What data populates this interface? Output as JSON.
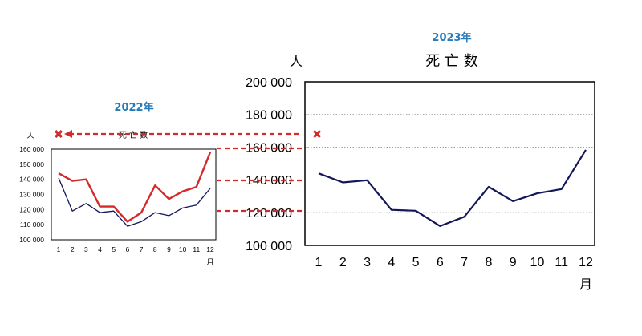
{
  "colors": {
    "red": "#d42a2a",
    "navy": "#14165a",
    "grid": "#7f7f7f",
    "year_title": "#2a7ab8"
  },
  "icons": {
    "cross_mark": "✖"
  },
  "chart_data": [
    {
      "id": "small",
      "type": "line",
      "year_title": "2022年",
      "title": "死 亡 数",
      "unit_y": "人",
      "unit_x": "月",
      "ylim": [
        100000,
        160000
      ],
      "yticks": [
        100000,
        110000,
        120000,
        130000,
        140000,
        150000,
        160000
      ],
      "ytick_labels": [
        "100 000",
        "110 000",
        "120 000",
        "130 000",
        "140 000",
        "150 000",
        "160 000"
      ],
      "categories": [
        "1",
        "2",
        "3",
        "4",
        "5",
        "6",
        "7",
        "8",
        "9",
        "10",
        "11",
        "12"
      ],
      "grid": false,
      "series": [
        {
          "color": "#14165a",
          "values": [
            141000,
            119000,
            124000,
            118000,
            119000,
            109000,
            112000,
            118000,
            116000,
            121000,
            123000,
            134000
          ]
        },
        {
          "color": "#d42a2a",
          "values": [
            144000,
            139000,
            140000,
            122000,
            122000,
            112000,
            118000,
            136000,
            127000,
            132000,
            135000,
            158000
          ]
        }
      ]
    },
    {
      "id": "large",
      "type": "line",
      "year_title": "2023年",
      "title": "死 亡 数",
      "unit_y": "人",
      "unit_x": "月",
      "ylim": [
        100000,
        200000
      ],
      "yticks": [
        100000,
        120000,
        140000,
        160000,
        180000,
        200000
      ],
      "ytick_labels": [
        "100 000",
        "120 000",
        "140 000",
        "160 000",
        "180 000",
        "200 000"
      ],
      "categories": [
        "1",
        "2",
        "3",
        "4",
        "5",
        "6",
        "7",
        "8",
        "9",
        "10",
        "11",
        "12"
      ],
      "grid": true,
      "series": [
        {
          "color": "#14165a",
          "values": [
            144000,
            138500,
            139800,
            121700,
            121200,
            111800,
            117500,
            135800,
            127000,
            131800,
            134400,
            158400
          ]
        }
      ]
    }
  ]
}
